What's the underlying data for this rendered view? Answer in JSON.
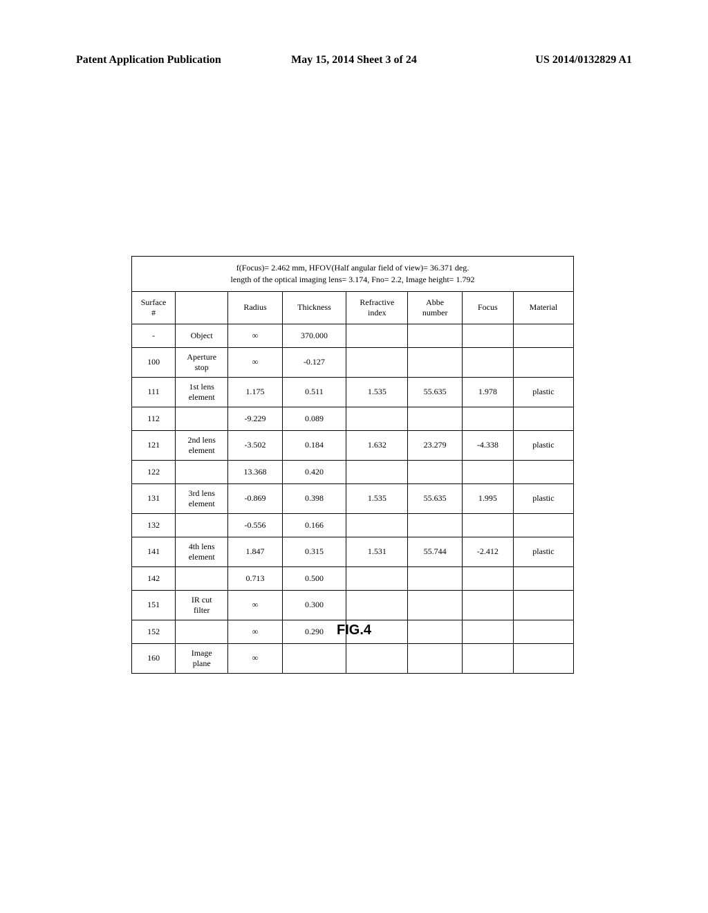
{
  "header": {
    "left": "Patent Application Publication",
    "center": "May 15, 2014  Sheet 3 of 24",
    "right": "US 2014/0132829 A1"
  },
  "table": {
    "title_line1": "f(Focus)= 2.462 mm, HFOV(Half angular field of view)= 36.371 deg.",
    "title_line2": "length of the optical imaging lens= 3.174, Fno= 2.2, Image height= 1.792",
    "columns": {
      "surface": "Surface\n#",
      "desc": "",
      "radius": "Radius",
      "thickness": "Thickness",
      "refractive": "Refractive\nindex",
      "abbe": "Abbe\nnumber",
      "focus": "Focus",
      "material": "Material"
    },
    "rows": [
      {
        "surface": "-",
        "desc": "Object",
        "radius": "∞",
        "thickness": "370.000",
        "refractive": "",
        "abbe": "",
        "focus": "",
        "material": ""
      },
      {
        "surface": "100",
        "desc": "Aperture\nstop",
        "radius": "∞",
        "thickness": "-0.127",
        "refractive": "",
        "abbe": "",
        "focus": "",
        "material": ""
      },
      {
        "surface": "111",
        "desc": "1st lens\nelement",
        "radius": "1.175",
        "thickness": "0.511",
        "refractive": "1.535",
        "abbe": "55.635",
        "focus": "1.978",
        "material": "plastic"
      },
      {
        "surface": "112",
        "desc": "",
        "radius": "-9.229",
        "thickness": "0.089",
        "refractive": "",
        "abbe": "",
        "focus": "",
        "material": ""
      },
      {
        "surface": "121",
        "desc": "2nd lens\nelement",
        "radius": "-3.502",
        "thickness": "0.184",
        "refractive": "1.632",
        "abbe": "23.279",
        "focus": "-4.338",
        "material": "plastic"
      },
      {
        "surface": "122",
        "desc": "",
        "radius": "13.368",
        "thickness": "0.420",
        "refractive": "",
        "abbe": "",
        "focus": "",
        "material": ""
      },
      {
        "surface": "131",
        "desc": "3rd lens\nelement",
        "radius": "-0.869",
        "thickness": "0.398",
        "refractive": "1.535",
        "abbe": "55.635",
        "focus": "1.995",
        "material": "plastic"
      },
      {
        "surface": "132",
        "desc": "",
        "radius": "-0.556",
        "thickness": "0.166",
        "refractive": "",
        "abbe": "",
        "focus": "",
        "material": ""
      },
      {
        "surface": "141",
        "desc": "4th lens\nelement",
        "radius": "1.847",
        "thickness": "0.315",
        "refractive": "1.531",
        "abbe": "55.744",
        "focus": "-2.412",
        "material": "plastic"
      },
      {
        "surface": "142",
        "desc": "",
        "radius": "0.713",
        "thickness": "0.500",
        "refractive": "",
        "abbe": "",
        "focus": "",
        "material": ""
      },
      {
        "surface": "151",
        "desc": "IR cut\nfilter",
        "radius": "∞",
        "thickness": "0.300",
        "refractive": "",
        "abbe": "",
        "focus": "",
        "material": ""
      },
      {
        "surface": "152",
        "desc": "",
        "radius": "∞",
        "thickness": "0.290",
        "refractive": "",
        "abbe": "",
        "focus": "",
        "material": ""
      },
      {
        "surface": "160",
        "desc": "Image\nplane",
        "radius": "∞",
        "thickness": "",
        "refractive": "",
        "abbe": "",
        "focus": "",
        "material": ""
      }
    ]
  },
  "figure_label": "FIG.4"
}
